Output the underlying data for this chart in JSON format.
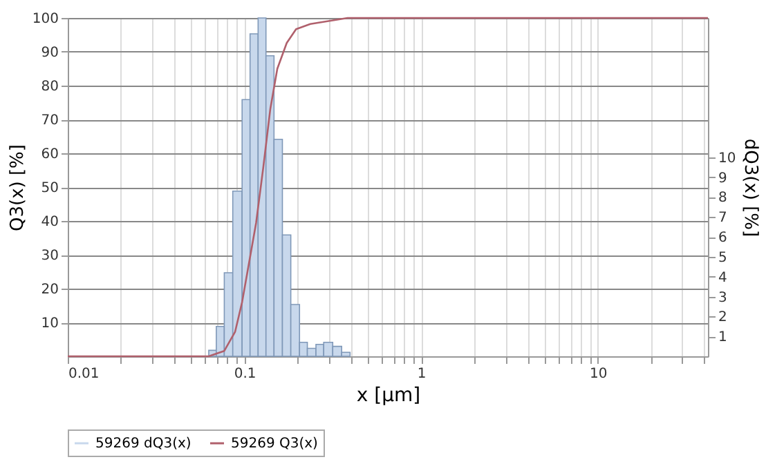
{
  "chart_data": {
    "type": "histogram",
    "xlabel": "x [µm]",
    "ylabel": "Q3(x) [%]",
    "y2label": "dQ3(x) [%]",
    "log": "x",
    "grid": true,
    "legend": "bottom left",
    "xlim": [
      0.01,
      42
    ],
    "ylim": [
      0,
      100
    ],
    "y2lim": [
      0,
      17
    ],
    "xticks": [
      0.01,
      {
        "value": 0.02,
        "label": null
      },
      {
        "value": 0.03,
        "label": null
      },
      {
        "value": 0.04,
        "label": null
      },
      {
        "value": 0.05,
        "label": null
      },
      {
        "value": 0.06,
        "label": null
      },
      {
        "value": 0.07,
        "label": null
      },
      {
        "value": 0.08,
        "label": null
      },
      {
        "value": 0.09,
        "label": null
      },
      0.1,
      {
        "value": 0.2,
        "label": null
      },
      {
        "value": 0.3,
        "label": null
      },
      {
        "value": 0.4,
        "label": null
      },
      {
        "value": 0.5,
        "label": null
      },
      {
        "value": 0.6,
        "label": null
      },
      {
        "value": 0.7,
        "label": null
      },
      {
        "value": 0.8,
        "label": null
      },
      {
        "value": 0.9,
        "label": null
      },
      1,
      {
        "value": 2,
        "label": null
      },
      {
        "value": 3,
        "label": null
      },
      {
        "value": 4,
        "label": null
      },
      {
        "value": 5,
        "label": null
      },
      {
        "value": 6,
        "label": null
      },
      {
        "value": 7,
        "label": null
      },
      {
        "value": 8,
        "label": null
      },
      {
        "value": 9,
        "label": null
      },
      10,
      {
        "value": 20,
        "label": null
      },
      {
        "value": 30,
        "label": null
      },
      {
        "value": 40,
        "label": null
      }
    ],
    "yticks": [
      10,
      20,
      30,
      40,
      50,
      60,
      70,
      80,
      90,
      100
    ],
    "y2ticks": [
      1,
      2,
      3,
      4,
      5,
      6,
      7,
      8,
      9,
      10
    ],
    "series": [
      {
        "name": "59269 dQ3(x)",
        "axis": "y2",
        "color": "#c8d8ec",
        "bins": [
          0.0628,
          0.0693,
          0.0769,
          0.0859,
          0.097,
          0.1076,
          0.1195,
          0.1324,
          0.147,
          0.164,
          0.183,
          0.205,
          0.227,
          0.254,
          0.281,
          0.316,
          0.355,
          0.396
        ],
        "values": [
          0.3,
          1.5,
          4.2,
          8.3,
          12.9,
          16.2,
          17,
          15.1,
          10.9,
          6.1,
          2.6,
          0.7,
          0.4,
          0.6,
          0.7,
          0.5,
          0.2
        ]
      },
      {
        "name": "59269 Q3(x)",
        "type": "line",
        "color": "#b0606c",
        "x": [
          0.01,
          0.0628,
          0.0769,
          0.0885,
          0.097,
          0.1164,
          0.1276,
          0.14,
          0.1535,
          0.1735,
          0.196,
          0.236,
          0.384,
          42
        ],
        "values": [
          0,
          0,
          1.6,
          7.2,
          16,
          39.4,
          55.5,
          73,
          85,
          92.6,
          96.7,
          98.2,
          100,
          100
        ]
      }
    ]
  }
}
